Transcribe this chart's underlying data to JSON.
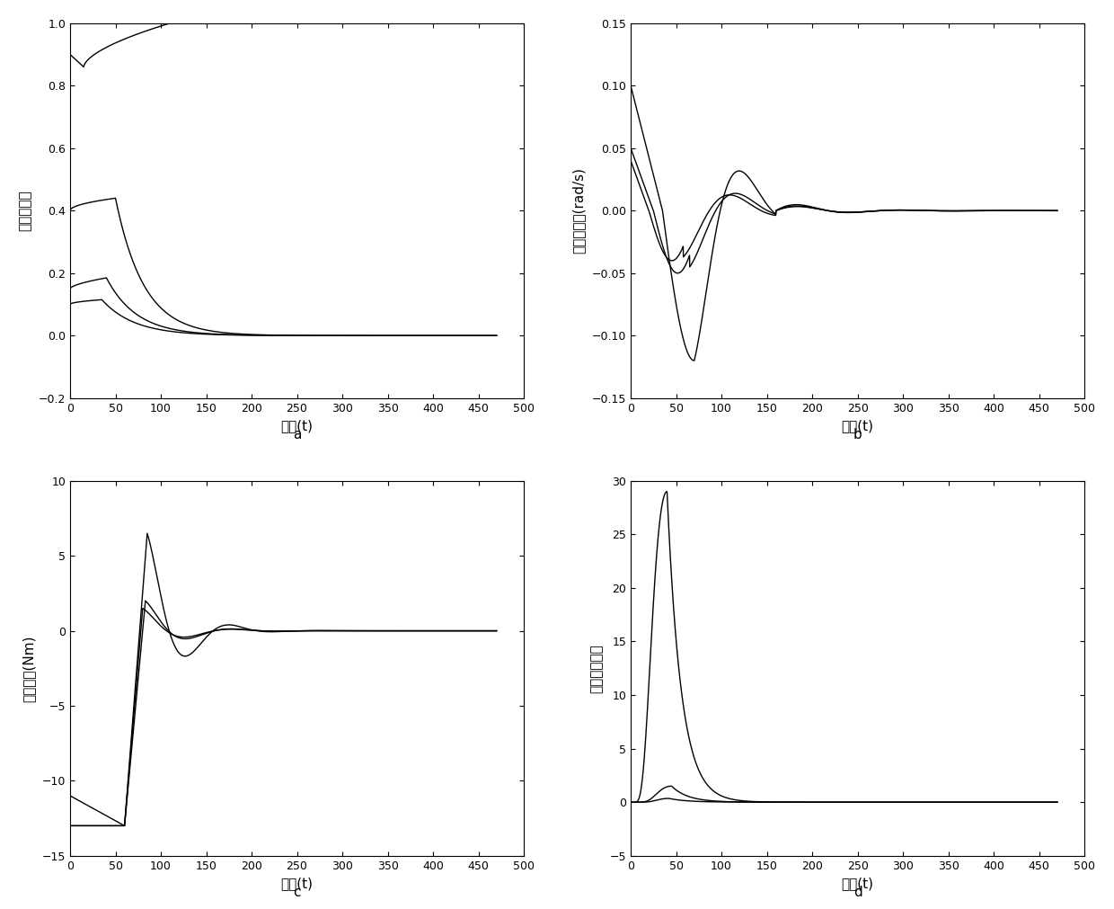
{
  "t_end": 470,
  "dt": 0.2,
  "panel_a": {
    "ylabel": "姿态四元数",
    "xlabel": "时间(t)",
    "ylim": [
      -0.2,
      1.0
    ],
    "yticks": [
      -0.2,
      0.0,
      0.2,
      0.4,
      0.6,
      0.8,
      1.0
    ],
    "xlim": [
      0,
      500
    ],
    "xticks": [
      0,
      50,
      100,
      150,
      200,
      250,
      300,
      350,
      400,
      450,
      500
    ]
  },
  "panel_b": {
    "ylabel": "姿态角速度(rad/s)",
    "xlabel": "时间(t)",
    "ylim": [
      -0.15,
      0.15
    ],
    "yticks": [
      -0.15,
      -0.1,
      -0.05,
      0.0,
      0.05,
      0.1,
      0.15
    ],
    "xlim": [
      0,
      500
    ],
    "xticks": [
      0,
      50,
      100,
      150,
      200,
      250,
      300,
      350,
      400,
      450,
      500
    ]
  },
  "panel_c": {
    "ylabel": "控制力矩(Nm)",
    "xlabel": "时间(t)",
    "ylim": [
      -15,
      10
    ],
    "yticks": [
      -15,
      -10,
      -5,
      0,
      5,
      10
    ],
    "xlim": [
      0,
      500
    ],
    "xticks": [
      0,
      50,
      100,
      150,
      200,
      250,
      300,
      350,
      400,
      450,
      500
    ]
  },
  "panel_d": {
    "ylabel": "附加系统状态",
    "xlabel": "时间(t)",
    "ylim": [
      -5,
      30
    ],
    "yticks": [
      -5,
      0,
      5,
      10,
      15,
      20,
      25,
      30
    ],
    "xlim": [
      0,
      500
    ],
    "xticks": [
      0,
      50,
      100,
      150,
      200,
      250,
      300,
      350,
      400,
      450,
      500
    ]
  },
  "line_color": "#000000",
  "linewidth": 1.0,
  "bg_color": "#ffffff",
  "label_fontsize": 11,
  "tick_fontsize": 9,
  "sublabel_fontsize": 11
}
